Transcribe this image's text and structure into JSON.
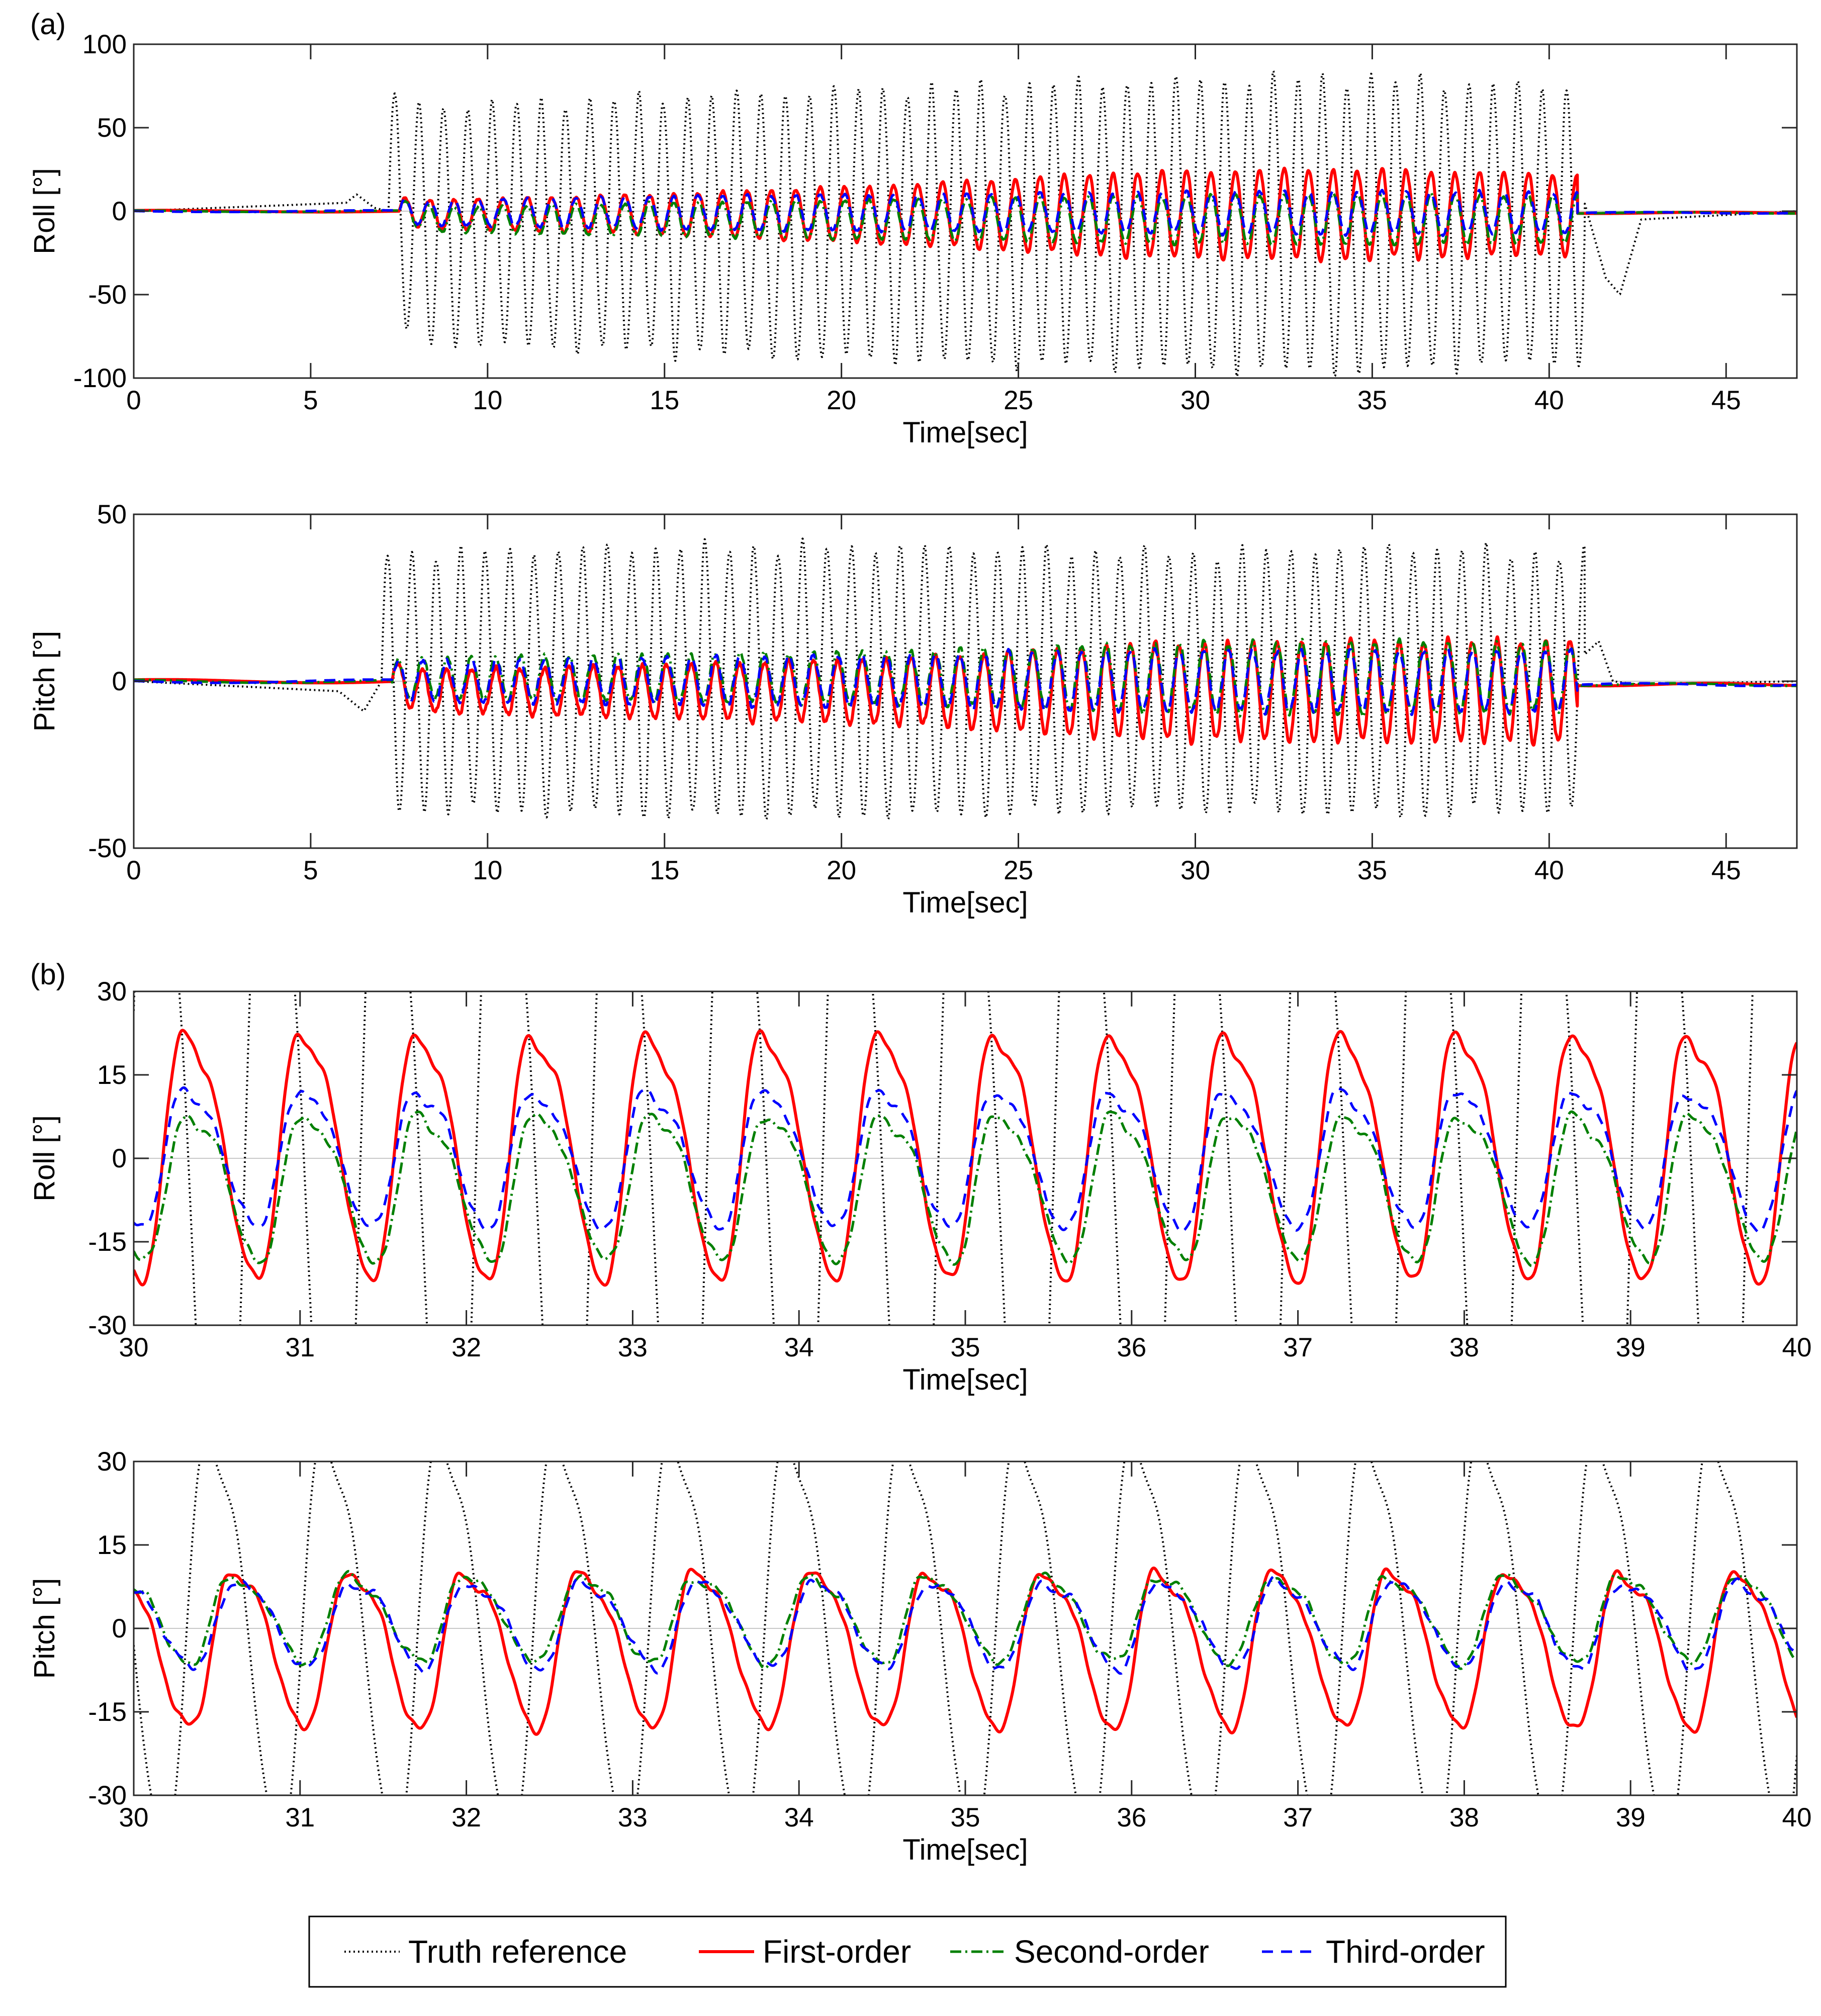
{
  "panel_labels": {
    "a": "(a)",
    "b": "(b)"
  },
  "colors": {
    "truth": "#000000",
    "first": "#ff0000",
    "second": "#008000",
    "third": "#0000ff"
  },
  "legend": {
    "truth": "Truth reference",
    "first": "First-order",
    "second": "Second-order",
    "third": "Third-order"
  },
  "chart_data": [
    {
      "type": "line",
      "id": "a-roll",
      "ylabel": "Roll [°]",
      "xlabel": "Time[sec]",
      "xlim": [
        0,
        47
      ],
      "ylim": [
        -100,
        100
      ],
      "xticks": [
        "0",
        "5",
        "10",
        "15",
        "20",
        "25",
        "30",
        "35",
        "40",
        "45"
      ],
      "yticks": [
        "-100",
        "-50",
        "0",
        "50",
        "100"
      ],
      "series": [
        {
          "name": "Truth reference",
          "key": "truth",
          "oscillation": {
            "start": 7.2,
            "end": 41.0,
            "period": 0.69,
            "bias": -8,
            "amplitude_points": [
              [
                7.5,
                70
              ],
              [
                14,
                75
              ],
              [
                20,
                80
              ],
              [
                28,
                85
              ],
              [
                34,
                88
              ],
              [
                40,
                82
              ]
            ]
          },
          "pre_event": [
            [
              0,
              0
            ],
            [
              6.0,
              5
            ],
            [
              6.3,
              10
            ],
            [
              6.8,
              2
            ],
            [
              7.2,
              0
            ]
          ],
          "post_event": [
            [
              41.0,
              5
            ],
            [
              41.6,
              -40
            ],
            [
              42.0,
              -50
            ],
            [
              42.6,
              -5
            ],
            [
              47,
              0
            ]
          ]
        },
        {
          "name": "First-order",
          "key": "first",
          "oscillation": {
            "start": 7.5,
            "end": 40.8,
            "period": 0.69,
            "bias": -2,
            "amplitude_points": [
              [
                7.5,
                8
              ],
              [
                15,
                12
              ],
              [
                22,
                18
              ],
              [
                28,
                25
              ],
              [
                34,
                27
              ],
              [
                40,
                24
              ]
            ]
          }
        },
        {
          "name": "Second-order",
          "key": "second",
          "oscillation": {
            "start": 7.5,
            "end": 40.8,
            "period": 0.69,
            "bias": -5,
            "amplitude_points": [
              [
                7.5,
                7
              ],
              [
                15,
                10
              ],
              [
                22,
                12
              ],
              [
                28,
                14
              ],
              [
                34,
                15
              ],
              [
                40,
                14
              ]
            ]
          }
        },
        {
          "name": "Third-order",
          "key": "third",
          "oscillation": {
            "start": 7.5,
            "end": 40.8,
            "period": 0.69,
            "bias": -1,
            "amplitude_points": [
              [
                7.5,
                7
              ],
              [
                15,
                10
              ],
              [
                22,
                11
              ],
              [
                28,
                12
              ],
              [
                34,
                13
              ],
              [
                40,
                12
              ]
            ]
          }
        }
      ]
    },
    {
      "type": "line",
      "id": "a-pitch",
      "ylabel": "Pitch [°]",
      "xlabel": "Time[sec]",
      "xlim": [
        0,
        47
      ],
      "ylim": [
        -50,
        50
      ],
      "xticks": [
        "0",
        "5",
        "10",
        "15",
        "20",
        "25",
        "30",
        "35",
        "40",
        "45"
      ],
      "yticks": [
        "-50",
        "0",
        "50"
      ],
      "series": [
        {
          "name": "Truth reference",
          "key": "truth",
          "oscillation": {
            "start": 7.0,
            "end": 41.0,
            "period": 0.69,
            "bias": 0,
            "amplitude_points": [
              [
                7.0,
                38
              ],
              [
                15,
                40
              ],
              [
                22,
                40
              ],
              [
                30,
                38
              ],
              [
                36,
                40
              ],
              [
                40,
                38
              ]
            ]
          },
          "pre_event": [
            [
              0,
              0
            ],
            [
              5.8,
              -3
            ],
            [
              6.5,
              -9
            ],
            [
              7.0,
              0
            ]
          ],
          "post_event": [
            [
              41.0,
              8
            ],
            [
              41.4,
              12
            ],
            [
              41.8,
              0
            ],
            [
              42.5,
              -1
            ],
            [
              47,
              0
            ]
          ]
        },
        {
          "name": "First-order",
          "key": "first",
          "oscillation": {
            "start": 7.3,
            "end": 40.8,
            "period": 0.69,
            "bias": -3,
            "amplitude_points": [
              [
                7.3,
                6
              ],
              [
                15,
                8
              ],
              [
                22,
                10
              ],
              [
                28,
                14
              ],
              [
                34,
                15
              ],
              [
                40,
                15
              ]
            ]
          }
        },
        {
          "name": "Second-order",
          "key": "second",
          "oscillation": {
            "start": 7.3,
            "end": 40.8,
            "period": 0.69,
            "bias": 1,
            "amplitude_points": [
              [
                7.3,
                6
              ],
              [
                15,
                7
              ],
              [
                22,
                8
              ],
              [
                28,
                10
              ],
              [
                34,
                11
              ],
              [
                40,
                10
              ]
            ]
          }
        },
        {
          "name": "Third-order",
          "key": "third",
          "oscillation": {
            "start": 7.3,
            "end": 40.8,
            "period": 0.69,
            "bias": 0,
            "amplitude_points": [
              [
                7.3,
                6
              ],
              [
                15,
                7
              ],
              [
                22,
                8
              ],
              [
                28,
                9
              ],
              [
                34,
                9
              ],
              [
                40,
                9
              ]
            ]
          }
        }
      ]
    },
    {
      "type": "line",
      "id": "b-roll",
      "ylabel": "Roll [°]",
      "xlabel": "Time[sec]",
      "xlim": [
        30,
        40
      ],
      "ylim": [
        -30,
        30
      ],
      "xticks": [
        "30",
        "31",
        "32",
        "33",
        "34",
        "35",
        "36",
        "37",
        "38",
        "39",
        "40"
      ],
      "yticks": [
        "-30",
        "-15",
        "0",
        "15",
        "30"
      ],
      "period": 0.695,
      "series": [
        {
          "name": "Truth reference",
          "key": "truth",
          "bias": -5,
          "amplitude": 85,
          "phase_peak": 30.15
        },
        {
          "name": "First-order",
          "key": "first",
          "bias": 1.5,
          "amplitude": 24.5,
          "phase_peak": 30.36
        },
        {
          "name": "Second-order",
          "key": "second",
          "bias": -4.5,
          "amplitude": 14.5,
          "phase_peak": 30.38
        },
        {
          "name": "Third-order",
          "key": "third",
          "bias": 0.5,
          "amplitude": 13.5,
          "phase_peak": 30.36
        }
      ]
    },
    {
      "type": "line",
      "id": "b-pitch",
      "ylabel": "Pitch [°]",
      "xlabel": "Time[sec]",
      "xlim": [
        30,
        40
      ],
      "ylim": [
        -30,
        30
      ],
      "xticks": [
        "30",
        "31",
        "32",
        "33",
        "34",
        "35",
        "36",
        "37",
        "38",
        "39",
        "40"
      ],
      "yticks": [
        "-30",
        "-15",
        "0",
        "15",
        "30"
      ],
      "period": 0.695,
      "series": [
        {
          "name": "Truth reference",
          "key": "truth",
          "bias": 0,
          "amplitude": 40,
          "phase_peak": 30.5
        },
        {
          "name": "First-order",
          "key": "first",
          "bias": -3,
          "amplitude": 15.5,
          "phase_peak": 30.65
        },
        {
          "name": "Second-order",
          "key": "second",
          "bias": 2,
          "amplitude": 8.5,
          "phase_peak": 30.65
        },
        {
          "name": "Third-order",
          "key": "third",
          "bias": 1,
          "amplitude": 8.5,
          "phase_peak": 30.67
        }
      ]
    }
  ]
}
